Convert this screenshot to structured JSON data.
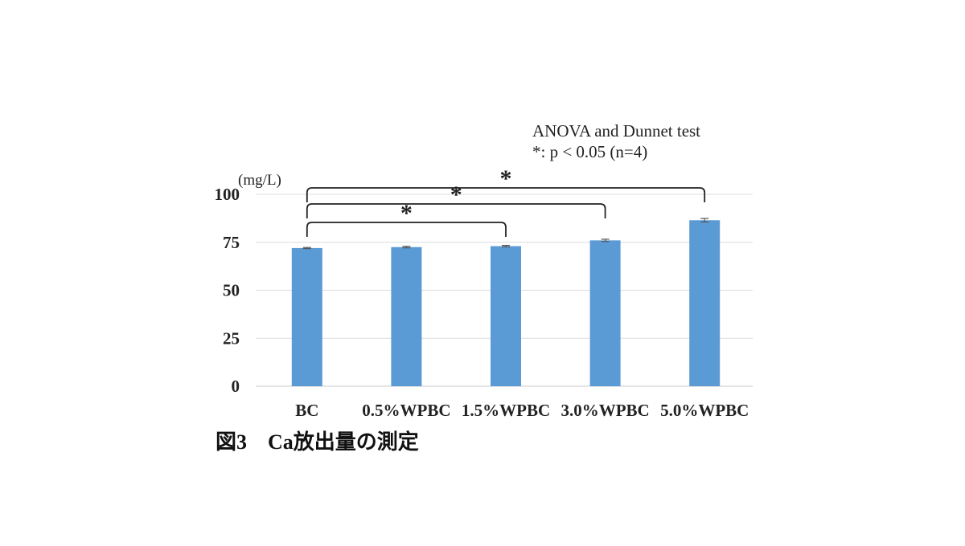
{
  "chart_data": {
    "type": "bar",
    "categories": [
      "BC",
      "0.5%WPBC",
      "1.5%WPBC",
      "3.0%WPBC",
      "5.0%WPBC"
    ],
    "values": [
      72,
      72.5,
      73,
      76,
      86.5
    ],
    "error": [
      0.3,
      0.4,
      0.4,
      0.6,
      0.9
    ],
    "ylim": [
      0,
      100
    ],
    "yticks": [
      0,
      25,
      50,
      75,
      100
    ],
    "ylabel": "(mg/L)",
    "bar_color": "#5b9bd5",
    "grid": true,
    "note_lines": [
      "ANOVA and Dunnet test",
      "*: p < 0.05 (n=4)"
    ],
    "significance": [
      {
        "from": "BC",
        "to": "1.5%WPBC",
        "label": "*"
      },
      {
        "from": "BC",
        "to": "3.0%WPBC",
        "label": "*"
      },
      {
        "from": "BC",
        "to": "5.0%WPBC",
        "label": "*"
      }
    ],
    "caption": "図3　Ca放出量の測定"
  }
}
